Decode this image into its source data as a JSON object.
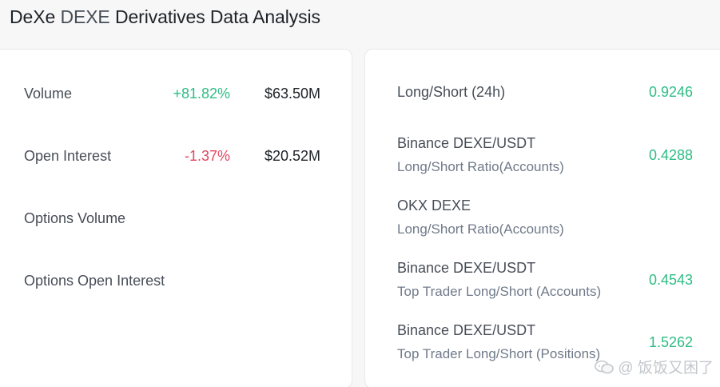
{
  "header": {
    "brand": "DeXe",
    "ticker": "DEXE",
    "title_rest": "Derivatives Data Analysis"
  },
  "left_panel": {
    "rows": [
      {
        "label": "Volume",
        "change": "+81.82%",
        "change_direction": "up",
        "amount": "$63.50M"
      },
      {
        "label": "Open Interest",
        "change": "-1.37%",
        "change_direction": "down",
        "amount": "$20.52M"
      },
      {
        "label": "Options Volume",
        "change": "",
        "amount": ""
      },
      {
        "label": "Options Open Interest",
        "change": "",
        "amount": ""
      }
    ]
  },
  "right_panel": {
    "rows": [
      {
        "line1": "Long/Short (24h)",
        "line2": "",
        "ratio": "0.9246"
      },
      {
        "line1": "Binance DEXE/USDT",
        "line2": "Long/Short Ratio(Accounts)",
        "ratio": "0.4288"
      },
      {
        "line1": "OKX DEXE",
        "line2": "Long/Short Ratio(Accounts)",
        "ratio": ""
      },
      {
        "line1": "Binance DEXE/USDT",
        "line2": "Top Trader Long/Short (Accounts)",
        "ratio": "0.4543"
      },
      {
        "line1": "Binance DEXE/USDT",
        "line2": "Top Trader Long/Short (Positions)",
        "ratio": "1.5262"
      }
    ]
  },
  "watermark": {
    "text": "@ 饭饭又困了",
    "icon": "chat-bubble-icon"
  },
  "colors": {
    "positive": "#2ebd85",
    "negative": "#e0475f",
    "text_primary": "#1e2329",
    "text_secondary": "#707a8a"
  }
}
